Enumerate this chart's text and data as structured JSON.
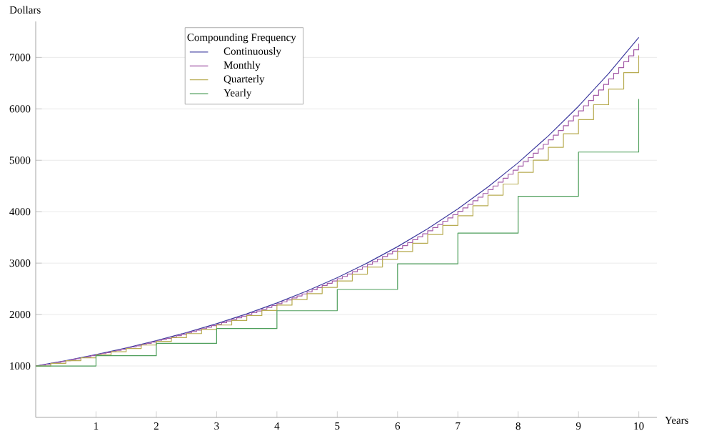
{
  "chart_data": {
    "type": "step",
    "xlabel": "Years",
    "ylabel": "Dollars",
    "legend_title": "Compounding Frequency",
    "legend": "top left",
    "grid": "y",
    "marker": "none",
    "line_style": "solid",
    "xlim": [
      0,
      10.3
    ],
    "ylim": [
      0,
      7700
    ],
    "xticks": [
      1,
      2,
      3,
      4,
      5,
      6,
      7,
      8,
      9,
      10
    ],
    "yticks": [
      1000,
      2000,
      3000,
      4000,
      5000,
      6000,
      7000
    ],
    "series": [
      {
        "name": "Continuously",
        "type": "line",
        "color": "#3d3a9e",
        "x": [
          0,
          0.5,
          1,
          1.5,
          2,
          2.5,
          3,
          3.5,
          4,
          4.5,
          5,
          5.5,
          6,
          6.5,
          7,
          7.5,
          8,
          8.5,
          9,
          9.5,
          10
        ],
        "values": [
          1000,
          1105,
          1221,
          1350,
          1492,
          1649,
          1822,
          2014,
          2226,
          2460,
          2718,
          3004,
          3320,
          3669,
          4055,
          4482,
          4953,
          5474,
          6050,
          6686,
          7389
        ]
      },
      {
        "name": "Monthly",
        "color": "#a45ca8",
        "x": [
          0,
          0.0833,
          0.1667,
          0.25,
          0.3333,
          0.4167,
          0.5,
          0.5833,
          0.6667,
          0.75,
          0.8333,
          0.9167,
          1,
          1.0833,
          1.1667,
          1.25,
          1.3333,
          1.4167,
          1.5,
          1.5833,
          1.6667,
          1.75,
          1.8333,
          1.9167,
          2,
          2.0833,
          2.1667,
          2.25,
          2.3333,
          2.4167,
          2.5,
          2.5833,
          2.6667,
          2.75,
          2.8333,
          2.9167,
          3,
          3.0833,
          3.1667,
          3.25,
          3.3333,
          3.4167,
          3.5,
          3.5833,
          3.6667,
          3.75,
          3.8333,
          3.9167,
          4,
          4.0833,
          4.1667,
          4.25,
          4.3333,
          4.4167,
          4.5,
          4.5833,
          4.6667,
          4.75,
          4.8333,
          4.9167,
          5,
          5.0833,
          5.1667,
          5.25,
          5.3333,
          5.4167,
          5.5,
          5.5833,
          5.6667,
          5.75,
          5.8333,
          5.9167,
          6,
          6.0833,
          6.1667,
          6.25,
          6.3333,
          6.4167,
          6.5,
          6.5833,
          6.6667,
          6.75,
          6.8333,
          6.9167,
          7,
          7.0833,
          7.1667,
          7.25,
          7.3333,
          7.4167,
          7.5,
          7.5833,
          7.6667,
          7.75,
          7.8333,
          7.9167,
          8,
          8.0833,
          8.1667,
          8.25,
          8.3333,
          8.4167,
          8.5,
          8.5833,
          8.6667,
          8.75,
          8.8333,
          8.9167,
          9,
          9.0833,
          9.1667,
          9.25,
          9.3333,
          9.4167,
          9.5,
          9.5833,
          9.6667,
          9.75,
          9.8333,
          9.9167,
          10
        ],
        "values": [
          1000,
          1017,
          1034,
          1051,
          1068,
          1086,
          1104,
          1123,
          1141,
          1160,
          1180,
          1199,
          1219,
          1240,
          1260,
          1281,
          1303,
          1324,
          1347,
          1369,
          1392,
          1415,
          1439,
          1463,
          1487,
          1512,
          1537,
          1563,
          1589,
          1615,
          1642,
          1669,
          1697,
          1725,
          1754,
          1783,
          1813,
          1843,
          1874,
          1905,
          1937,
          1969,
          2002,
          2036,
          2069,
          2104,
          2139,
          2175,
          2211,
          2248,
          2285,
          2323,
          2362,
          2401,
          2441,
          2482,
          2523,
          2566,
          2608,
          2652,
          2696,
          2741,
          2787,
          2833,
          2880,
          2928,
          2977,
          3027,
          3077,
          3128,
          3181,
          3234,
          3287,
          3342,
          3398,
          3455,
          3512,
          3571,
          3630,
          3691,
          3752,
          3815,
          3878,
          3943,
          4009,
          4075,
          4143,
          4212,
          4283,
          4354,
          4427,
          4500,
          4575,
          4652,
          4729,
          4808,
          4888,
          4970,
          5052,
          5137,
          5222,
          5309,
          5398,
          5488,
          5579,
          5672,
          5767,
          5863,
          5961,
          6060,
          6161,
          6264,
          6368,
          6474,
          6582,
          6692,
          6803,
          6917,
          7032,
          7149,
          7268
        ]
      },
      {
        "name": "Quarterly",
        "color": "#b8ac52",
        "x": [
          0,
          0.25,
          0.5,
          0.75,
          1,
          1.25,
          1.5,
          1.75,
          2,
          2.25,
          2.5,
          2.75,
          3,
          3.25,
          3.5,
          3.75,
          4,
          4.25,
          4.5,
          4.75,
          5,
          5.25,
          5.5,
          5.75,
          6,
          6.25,
          6.5,
          6.75,
          7,
          7.25,
          7.5,
          7.75,
          8,
          8.25,
          8.5,
          8.75,
          9,
          9.25,
          9.5,
          9.75,
          10
        ],
        "values": [
          1000,
          1050,
          1103,
          1158,
          1216,
          1276,
          1340,
          1407,
          1477,
          1551,
          1629,
          1710,
          1796,
          1886,
          1980,
          2079,
          2183,
          2292,
          2407,
          2527,
          2653,
          2786,
          2925,
          3072,
          3225,
          3386,
          3556,
          3733,
          3920,
          4116,
          4322,
          4538,
          4765,
          5003,
          5253,
          5516,
          5792,
          6081,
          6385,
          6705,
          7040
        ]
      },
      {
        "name": "Yearly",
        "color": "#4f9f5c",
        "x": [
          0,
          1,
          2,
          3,
          4,
          5,
          6,
          7,
          8,
          9,
          10
        ],
        "values": [
          1000,
          1200,
          1440,
          1728,
          2074,
          2488,
          2986,
          3583,
          4300,
          5160,
          6192
        ]
      }
    ]
  }
}
